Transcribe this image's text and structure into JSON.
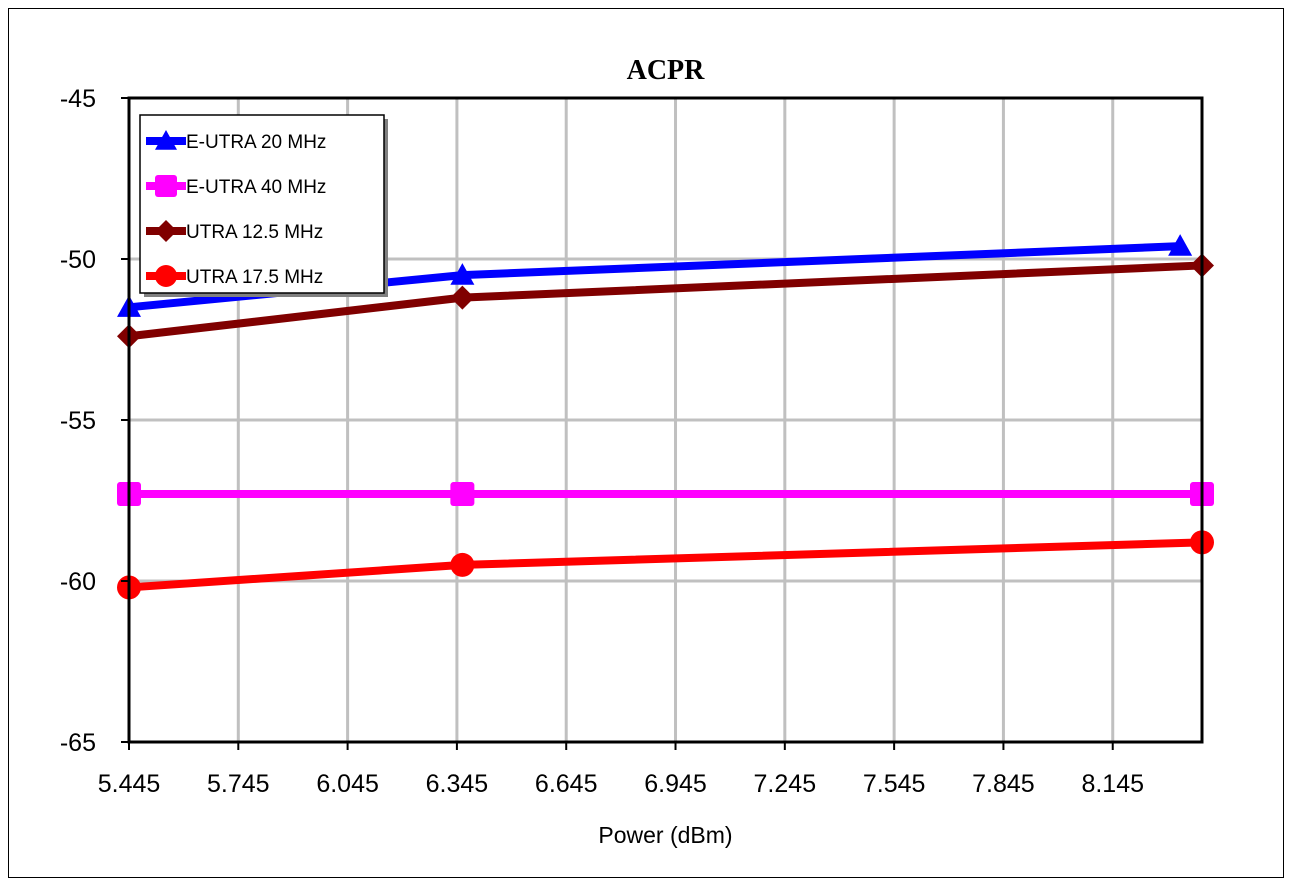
{
  "chart_data": {
    "type": "line",
    "title": "ACPR",
    "xlabel": "Power (dBm)",
    "ylabel": "",
    "xlim": [
      5.445,
      8.39
    ],
    "ylim": [
      -65,
      -45
    ],
    "x_ticks": [
      "5.445",
      "5.745",
      "6.045",
      "6.345",
      "6.645",
      "6.945",
      "7.245",
      "7.545",
      "7.845",
      "8.145"
    ],
    "y_ticks": [
      "-45",
      "-50",
      "-55",
      "-60",
      "-65"
    ],
    "grid": true,
    "legend_position": "top-left",
    "series": [
      {
        "name": "E-UTRA 20 MHz",
        "color": "#0000ff",
        "marker": "triangle",
        "x": [
          5.445,
          6.36,
          8.33
        ],
        "y": [
          -51.5,
          -50.5,
          -49.6
        ]
      },
      {
        "name": "E-UTRA 40 MHz",
        "color": "#ff00ff",
        "marker": "square",
        "x": [
          5.445,
          6.36,
          8.39
        ],
        "y": [
          -57.3,
          -57.3,
          -57.3
        ]
      },
      {
        "name": "UTRA 12.5 MHz",
        "color": "#800000",
        "marker": "diamond",
        "x": [
          5.445,
          6.36,
          8.39
        ],
        "y": [
          -52.4,
          -51.2,
          -50.2
        ]
      },
      {
        "name": "UTRA 17.5 MHz",
        "color": "#ff0000",
        "marker": "circle",
        "x": [
          5.445,
          6.36,
          8.39
        ],
        "y": [
          -60.2,
          -59.5,
          -58.8
        ]
      }
    ]
  }
}
